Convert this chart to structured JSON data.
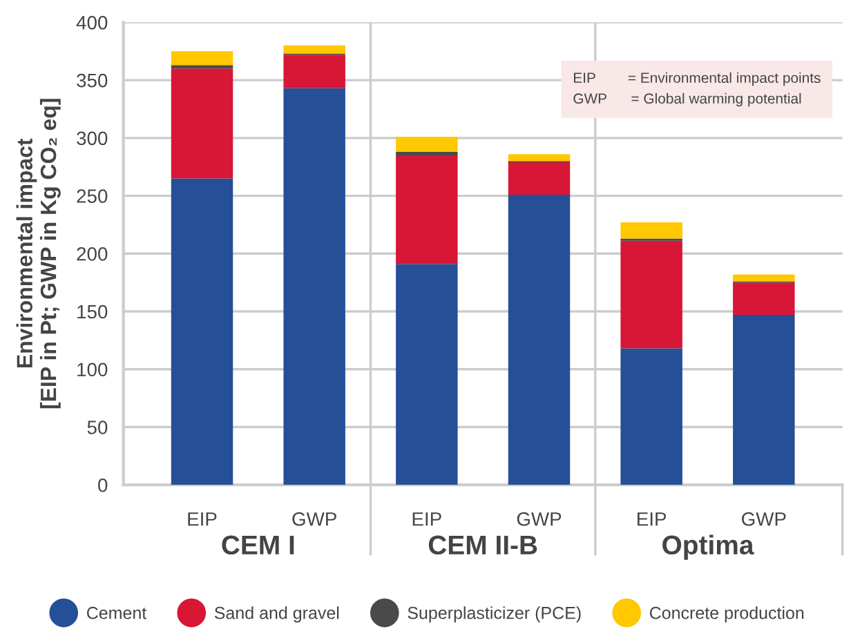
{
  "chart_data": {
    "type": "bar",
    "stacked": true,
    "ylabel": "Environmental impact\n[EIP in Pt; GWP in Kg CO₂ eq]",
    "categories": [
      "EIP",
      "GWP",
      "EIP",
      "GWP",
      "EIP",
      "GWP"
    ],
    "series": [
      {
        "name": "Cement",
        "color": "#254f97",
        "values": [
          265,
          343,
          191,
          251,
          118,
          147
        ]
      },
      {
        "name": "Sand and gravel",
        "color": "#d81636",
        "values": [
          95,
          29,
          94,
          28,
          93,
          28
        ]
      },
      {
        "name": "Superplasticizer (PCE)",
        "color": "#4a4a4a",
        "values": [
          3,
          1,
          3,
          1,
          2,
          1
        ]
      },
      {
        "name": "Concrete production",
        "color": "#ffc800",
        "values": [
          12,
          7,
          13,
          6,
          14,
          6
        ]
      }
    ],
    "annotations": [
      "CEM I",
      "CEM II-B",
      "Optima",
      "EIP        = Environmental impact points",
      "GWP      = Global warming potential"
    ],
    "ylim": [
      0,
      400
    ],
    "yticks": [
      0,
      50,
      100,
      150,
      200,
      250,
      300,
      350,
      400
    ],
    "grid": "y",
    "legend": "bottom"
  }
}
